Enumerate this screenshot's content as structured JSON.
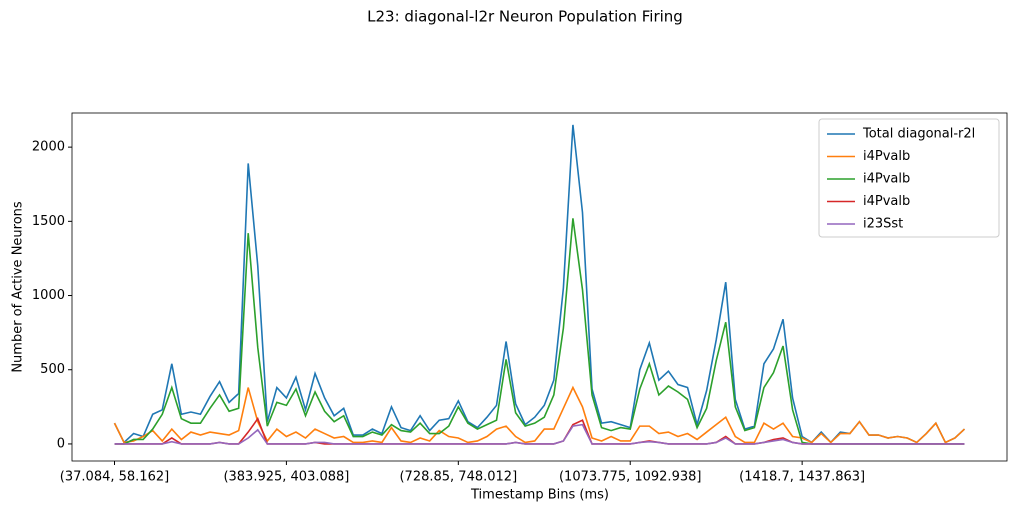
{
  "chart_data": {
    "type": "line",
    "title": "L23: diagonal-l2r Neuron Population Firing",
    "x_label": "Timestamp Bins (ms)",
    "y_label": "Number of Active Neurons",
    "categories": [
      "(37.084, 58.162]",
      null,
      null,
      null,
      null,
      null,
      null,
      null,
      null,
      null,
      null,
      null,
      null,
      null,
      null,
      null,
      null,
      null,
      "(383.925, 403.088]",
      null,
      null,
      null,
      null,
      null,
      null,
      null,
      null,
      null,
      null,
      null,
      null,
      null,
      null,
      null,
      null,
      null,
      "(728.85, 748.012]",
      null,
      null,
      null,
      null,
      null,
      null,
      null,
      null,
      null,
      null,
      null,
      null,
      null,
      null,
      null,
      null,
      null,
      "(1073.775, 1092.938]",
      null,
      null,
      null,
      null,
      null,
      null,
      null,
      null,
      null,
      null,
      null,
      null,
      null,
      null,
      null,
      null,
      null,
      "(1418.7, 1437.863]",
      null,
      null,
      null,
      null,
      null,
      null,
      null,
      null,
      null,
      null,
      null,
      null,
      null,
      null,
      null,
      null,
      null
    ],
    "series": [
      {
        "name": "Total diagonal-r2l",
        "color": "#1f77b4",
        "values": [
          140,
          10,
          70,
          50,
          200,
          230,
          540,
          200,
          215,
          200,
          320,
          420,
          280,
          340,
          1890,
          1200,
          150,
          380,
          310,
          450,
          230,
          475,
          310,
          190,
          240,
          60,
          60,
          100,
          70,
          250,
          110,
          90,
          190,
          90,
          160,
          170,
          290,
          150,
          110,
          180,
          260,
          690,
          270,
          130,
          180,
          260,
          430,
          1050,
          2150,
          1560,
          370,
          140,
          150,
          130,
          110,
          500,
          680,
          430,
          490,
          400,
          380,
          130,
          360,
          700,
          1090,
          300,
          100,
          120,
          540,
          640,
          840,
          310,
          50,
          10,
          80,
          10,
          80,
          70,
          150,
          60,
          60,
          40,
          50,
          40,
          10,
          70,
          140,
          10,
          40,
          100
        ]
      },
      {
        "name": "i4Pvalb",
        "color": "#ff7f0e",
        "values": [
          140,
          10,
          20,
          50,
          90,
          20,
          100,
          30,
          80,
          60,
          80,
          70,
          60,
          90,
          380,
          150,
          20,
          100,
          50,
          80,
          40,
          100,
          70,
          40,
          50,
          10,
          10,
          20,
          10,
          110,
          20,
          10,
          40,
          20,
          90,
          50,
          40,
          10,
          20,
          50,
          100,
          120,
          50,
          10,
          20,
          100,
          100,
          240,
          380,
          250,
          40,
          20,
          50,
          20,
          20,
          120,
          120,
          70,
          80,
          50,
          70,
          30,
          80,
          130,
          180,
          50,
          10,
          10,
          140,
          100,
          140,
          50,
          40,
          10,
          70,
          10,
          70,
          70,
          150,
          60,
          60,
          40,
          50,
          40,
          10,
          70,
          140,
          10,
          40,
          100
        ]
      },
      {
        "name": "i4Pvalb",
        "color": "#2ca02c",
        "values": [
          0,
          0,
          30,
          30,
          100,
          200,
          380,
          170,
          140,
          140,
          240,
          330,
          220,
          240,
          1420,
          650,
          120,
          280,
          260,
          370,
          190,
          350,
          220,
          150,
          190,
          50,
          50,
          80,
          60,
          130,
          90,
          80,
          140,
          70,
          70,
          120,
          250,
          140,
          100,
          130,
          160,
          570,
          210,
          120,
          140,
          180,
          330,
          780,
          1520,
          1040,
          330,
          110,
          90,
          110,
          100,
          370,
          540,
          330,
          390,
          350,
          300,
          110,
          240,
          560,
          820,
          250,
          90,
          110,
          380,
          480,
          660,
          230,
          10,
          0,
          0,
          0,
          0,
          0,
          0,
          0,
          0,
          0,
          0,
          0,
          0,
          0,
          0,
          0,
          0,
          0
        ]
      },
      {
        "name": "i4Pvalb",
        "color": "#d62728",
        "values": [
          0,
          0,
          0,
          0,
          0,
          0,
          40,
          0,
          0,
          0,
          0,
          10,
          0,
          0,
          80,
          170,
          0,
          0,
          0,
          0,
          0,
          10,
          0,
          0,
          0,
          0,
          0,
          0,
          0,
          0,
          0,
          0,
          0,
          0,
          0,
          0,
          0,
          0,
          0,
          0,
          0,
          0,
          10,
          0,
          0,
          0,
          0,
          20,
          130,
          160,
          0,
          0,
          0,
          0,
          0,
          10,
          20,
          10,
          0,
          0,
          0,
          0,
          0,
          10,
          50,
          0,
          0,
          0,
          10,
          30,
          40,
          10,
          0,
          0,
          0,
          0,
          0,
          0,
          0,
          0,
          0,
          0,
          0,
          0,
          0,
          0,
          0,
          0,
          0,
          0
        ]
      },
      {
        "name": "i23Sst",
        "color": "#9467bd",
        "values": [
          0,
          0,
          0,
          0,
          0,
          0,
          15,
          0,
          0,
          0,
          0,
          10,
          0,
          0,
          40,
          95,
          0,
          0,
          0,
          0,
          0,
          10,
          10,
          0,
          0,
          0,
          0,
          0,
          0,
          0,
          0,
          0,
          0,
          0,
          0,
          0,
          0,
          0,
          0,
          0,
          0,
          0,
          10,
          0,
          0,
          0,
          0,
          20,
          120,
          130,
          0,
          0,
          0,
          0,
          0,
          10,
          15,
          10,
          0,
          0,
          0,
          0,
          0,
          10,
          40,
          0,
          0,
          0,
          10,
          20,
          30,
          10,
          0,
          0,
          0,
          0,
          0,
          0,
          0,
          0,
          0,
          0,
          0,
          0,
          0,
          0,
          0,
          0,
          0,
          0
        ]
      }
    ],
    "ylim": [
      -115,
      2230
    ],
    "yticks": [
      0,
      500,
      1000,
      1500,
      2000
    ],
    "legend": "upper right"
  }
}
